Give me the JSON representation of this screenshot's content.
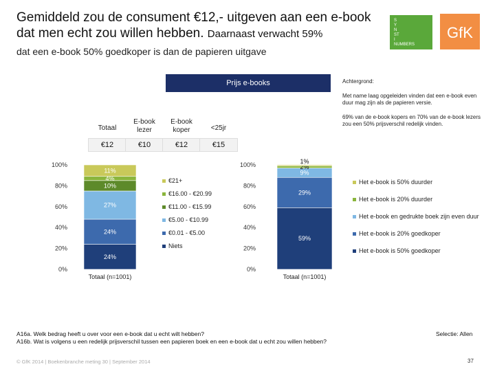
{
  "header": {
    "title_main": "Gemiddeld zou de consument €12,- uitgeven aan een e-book dat men echt zou willen hebben.",
    "title_small": "Daarnaast verwacht 59%",
    "subtitle": "dat een e-book 50% goedkoper is dan de papieren uitgave",
    "logo_lines": [
      "S",
      "Y",
      "N",
      "ST",
      "I",
      "NUMBERS"
    ],
    "brand": "GfK"
  },
  "prijs": {
    "header": "Prijs e-books",
    "columns": [
      {
        "label": "Totaal",
        "value": "€12"
      },
      {
        "label": "E-book lezer",
        "value": "€10"
      },
      {
        "label": "E-book koper",
        "value": "€12"
      },
      {
        "label": "<25jr",
        "value": "€15"
      }
    ]
  },
  "achtergrond": {
    "heading": "Achtergrond:",
    "paragraphs": [
      "Met name laag opgeleiden vinden dat een e-book even duur mag zijn als de papieren versie.",
      "69% van de e-book kopers en 70% van de e-book lezers zou een 50% prijsverschil redelijk vinden."
    ]
  },
  "chart_data": [
    {
      "type": "bar",
      "stacked": true,
      "categories": [
        "Totaal (n=1001)"
      ],
      "yticks": [
        "0%",
        "20%",
        "40%",
        "60%",
        "80%",
        "100%"
      ],
      "ylim": [
        0,
        100
      ],
      "series": [
        {
          "name": "Niets",
          "values": [
            24
          ],
          "label": "24%",
          "color": "#1f3f7a"
        },
        {
          "name": "€0.01 - €5.00",
          "values": [
            24
          ],
          "label": "24%",
          "color": "#3d6aad"
        },
        {
          "name": "€5.00 - €10.99",
          "values": [
            27
          ],
          "label": "27%",
          "color": "#7fb8e3"
        },
        {
          "name": "€11.00 - €15.99",
          "values": [
            10
          ],
          "label": "10%",
          "color": "#5d8a2a"
        },
        {
          "name": "€16.00 - €20.99",
          "values": [
            4
          ],
          "label": "4%",
          "color": "#8ab53c"
        },
        {
          "name": "€21+",
          "values": [
            11
          ],
          "label": "11%",
          "color": "#c9c95a"
        }
      ],
      "legend_position": "right"
    },
    {
      "type": "bar",
      "stacked": true,
      "categories": [
        "Totaal (n=1001)"
      ],
      "yticks": [
        "0%",
        "20%",
        "40%",
        "60%",
        "80%",
        "100%"
      ],
      "ylim": [
        0,
        100
      ],
      "series": [
        {
          "name": "Het e-book is 50% goedkoper",
          "values": [
            59
          ],
          "label": "59%",
          "color": "#1f3f7a"
        },
        {
          "name": "Het e-book is 20% goedkoper",
          "values": [
            29
          ],
          "label": "29%",
          "color": "#3d6aad"
        },
        {
          "name": "Het e-book en gedrukte boek zijn even duur",
          "values": [
            9
          ],
          "label": "9%",
          "color": "#7fb8e3"
        },
        {
          "name": "Het e-book is 20% duurder",
          "values": [
            2
          ],
          "label": "2%",
          "color": "#8ab53c"
        },
        {
          "name": "Het e-book is 50% duurder",
          "values": [
            1
          ],
          "label": "1%",
          "color": "#c9c95a"
        }
      ],
      "legend_position": "right"
    }
  ],
  "footer": {
    "question": "A16a. Welk bedrag heeft u over voor een e-book dat u echt wilt hebben?\nA16b. Wat is volgens u een redelijk prijsverschil tussen een papieren boek en een e-book dat u echt zou willen hebben?",
    "selectie": "Selectie: Allen",
    "source": "© GfK 2014 | Boekenbranche meting 30 | September 2014",
    "page": "37"
  }
}
